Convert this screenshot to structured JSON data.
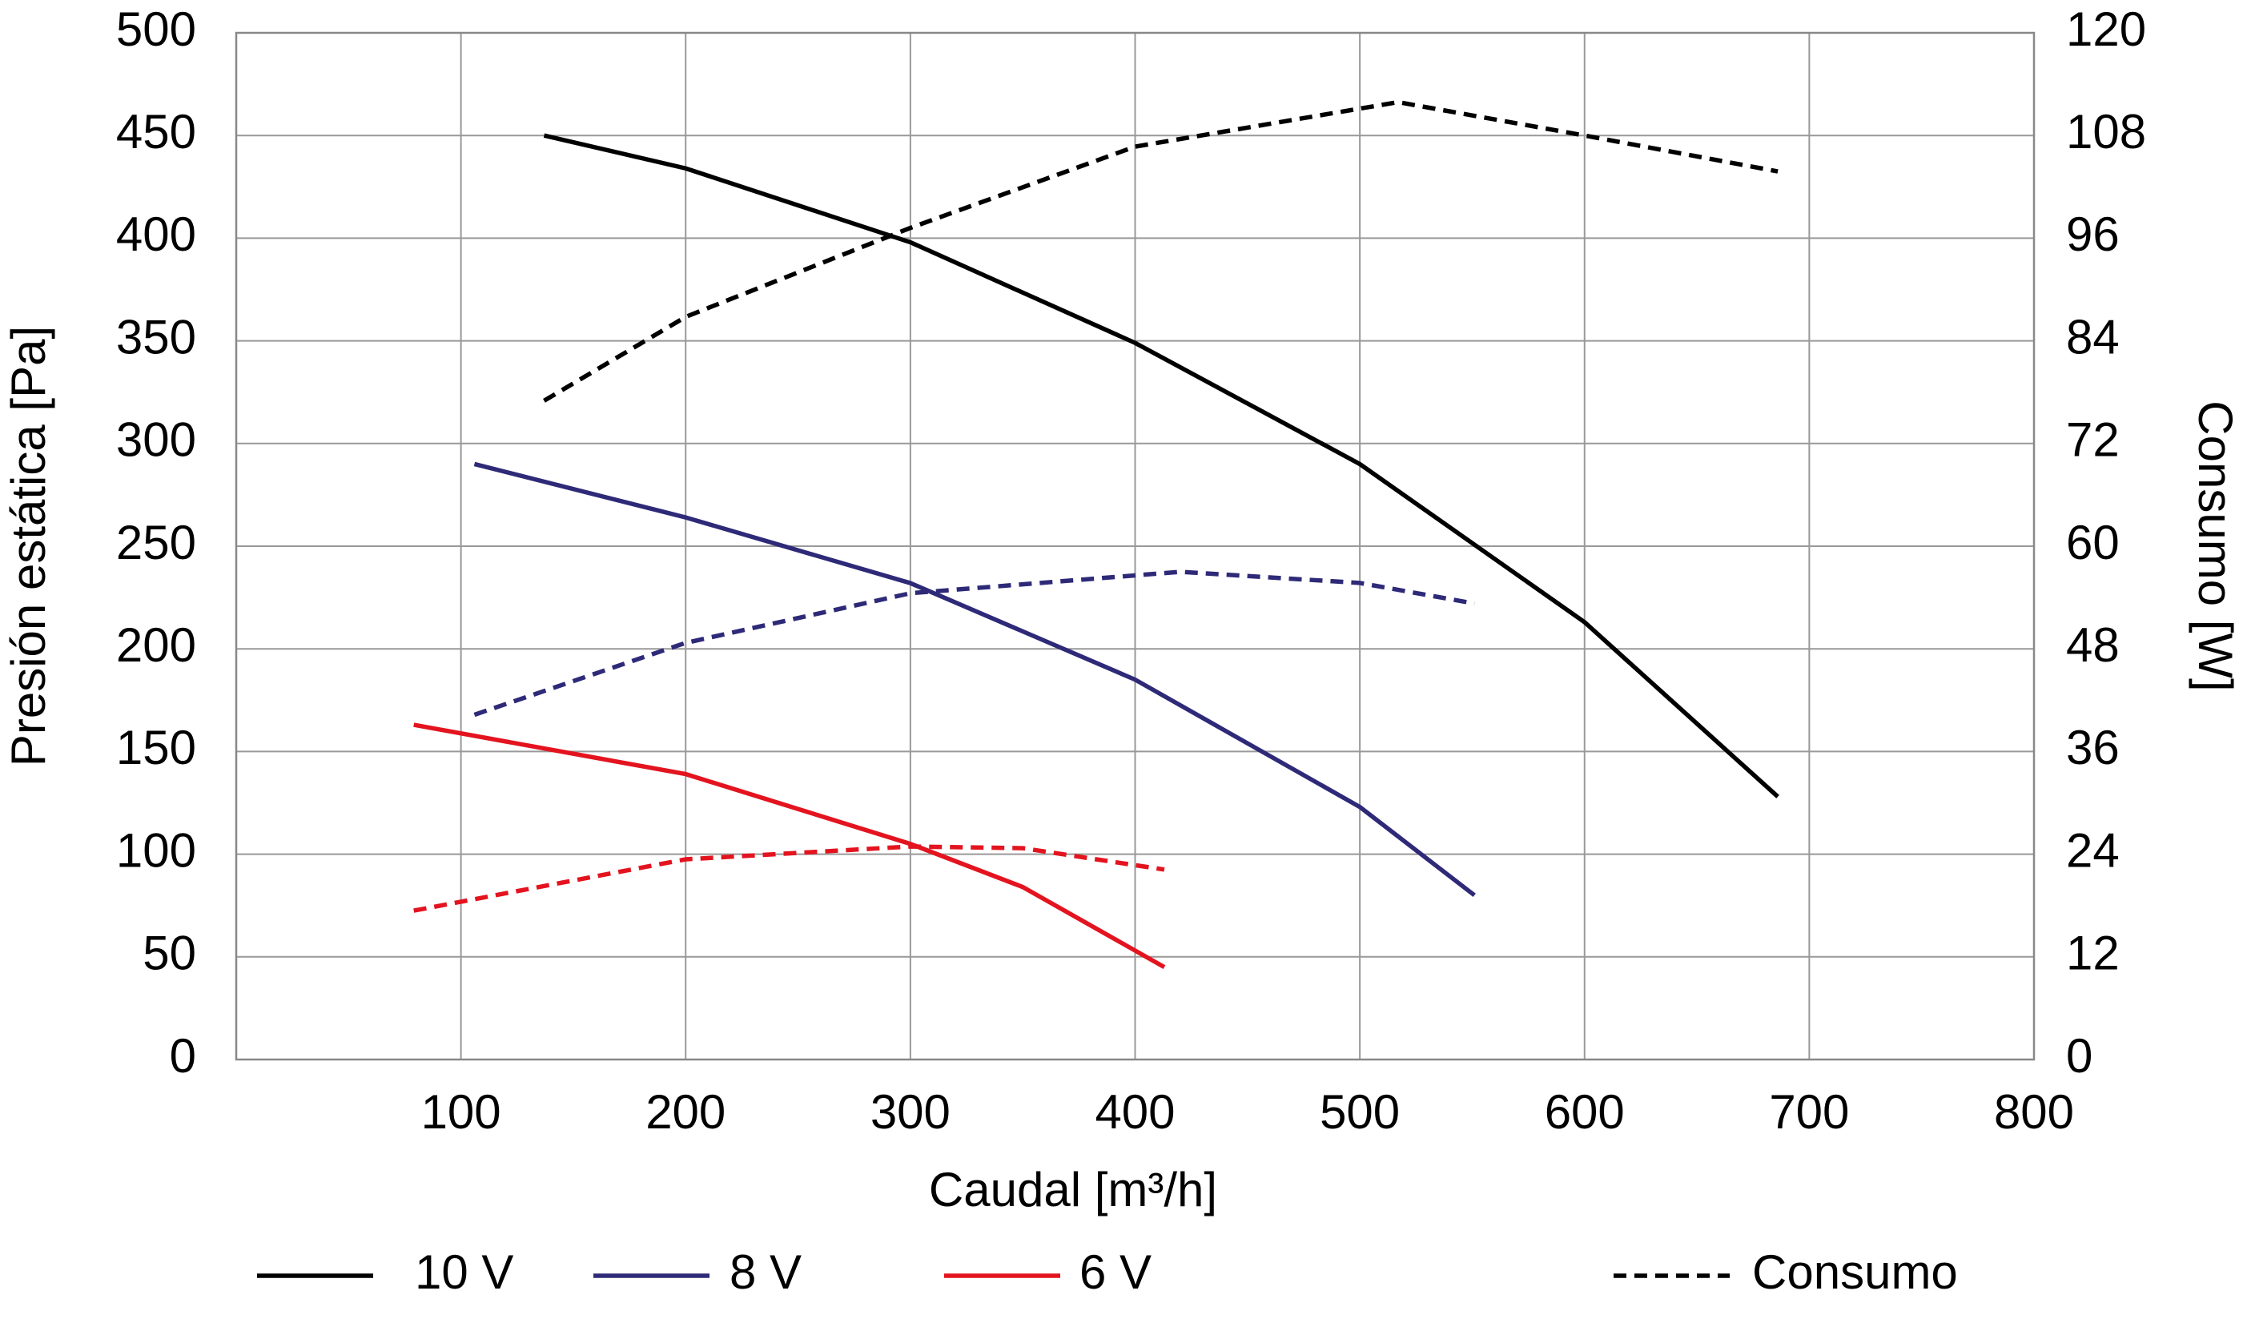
{
  "chart_data": {
    "type": "line",
    "xlabel": "Caudal [m³/h]",
    "ylabel": "Presión estática [Pa]",
    "y2label": "Consumo [W]",
    "xlim": [
      0,
      800
    ],
    "xticks": [
      100,
      200,
      300,
      400,
      500,
      600,
      700,
      800
    ],
    "ylim": [
      0,
      500
    ],
    "yticks": [
      0,
      50,
      100,
      150,
      200,
      250,
      300,
      350,
      400,
      450,
      500
    ],
    "y2lim": [
      0,
      120
    ],
    "y2ticks": [
      0,
      12,
      24,
      36,
      48,
      60,
      72,
      84,
      96,
      108,
      120
    ],
    "grid": true,
    "legend": "bottom",
    "series": [
      {
        "name": "10 V",
        "color": "#000000",
        "x": [
          137,
          200,
          300,
          400,
          500,
          600,
          686
        ],
        "values": [
          450,
          434,
          398,
          349,
          290,
          213,
          128
        ]
      },
      {
        "name": "8 V",
        "color": "#2e2a78",
        "x": [
          106,
          200,
          300,
          400,
          500,
          551
        ],
        "values": [
          290,
          264,
          232,
          185,
          123,
          80
        ]
      },
      {
        "name": "6 V",
        "color": "#e3141f",
        "x": [
          79,
          200,
          300,
          350,
          413
        ],
        "values": [
          163,
          139,
          105,
          84,
          45
        ]
      },
      {
        "name": "Consumo",
        "color": "#000000",
        "dashed": true,
        "axis": "y2",
        "x": [
          137,
          200,
          300,
          400,
          517,
          600,
          686
        ],
        "values": [
          77,
          86.8,
          97.2,
          106.7,
          111.9,
          108,
          103.8
        ]
      },
      {
        "color": "#2e2a78",
        "dashed": true,
        "axis": "y2",
        "x": [
          106,
          200,
          300,
          420,
          500,
          551
        ],
        "values": [
          40.3,
          48.7,
          54.5,
          57,
          55.7,
          53.3
        ]
      },
      {
        "color": "#e3141f",
        "dashed": true,
        "axis": "y2",
        "x": [
          79,
          200,
          300,
          350,
          413
        ],
        "values": [
          17.4,
          23.4,
          24.9,
          24.7,
          22.2
        ]
      }
    ]
  }
}
